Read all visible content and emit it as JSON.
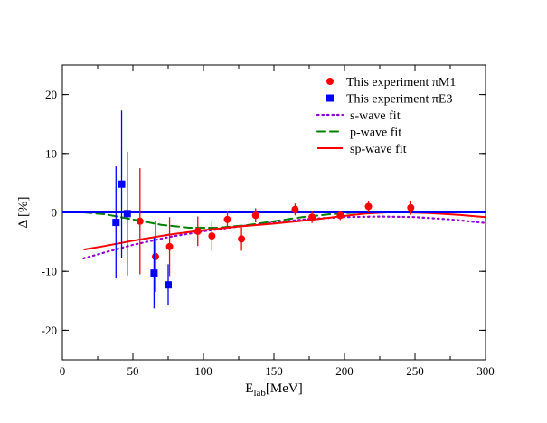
{
  "chart_data": {
    "type": "scatter",
    "title": "",
    "xlabel": {
      "main": "E",
      "sub": "lab",
      "unit": "[MeV]"
    },
    "ylabel": "Δ [%]",
    "xlim": [
      0,
      300
    ],
    "ylim": [
      -25,
      25
    ],
    "xticks": [
      0,
      50,
      100,
      150,
      200,
      250,
      300
    ],
    "yticks": [
      -20,
      -10,
      0,
      10,
      20
    ],
    "legend_position": "top-right",
    "colors": {
      "red": "#ff0000",
      "blue": "#0000ff",
      "purple": "#9400d3",
      "green": "#008000"
    },
    "legend": [
      {
        "key": "pim1",
        "label": "This experiment πM1",
        "marker": "circle",
        "color": "#ff0000"
      },
      {
        "key": "pie3",
        "label": "This experiment πE3",
        "marker": "square",
        "color": "#0000ff"
      },
      {
        "key": "s",
        "label": "s-wave fit",
        "line": "dotted",
        "color": "#9400d3"
      },
      {
        "key": "p",
        "label": "p-wave fit",
        "line": "dashed",
        "color": "#008000"
      },
      {
        "key": "sp",
        "label": "sp-wave fit",
        "line": "solid",
        "color": "#ff0000"
      }
    ],
    "series": [
      {
        "name": "This experiment πM1",
        "kind": "points",
        "marker": "circle",
        "color": "#ff0000",
        "points": [
          {
            "x": 55,
            "y": -1.5,
            "err": 9.0
          },
          {
            "x": 66,
            "y": -7.5,
            "err": 6.0
          },
          {
            "x": 76,
            "y": -5.8,
            "err": 5.0
          },
          {
            "x": 96,
            "y": -3.2,
            "err": 2.5
          },
          {
            "x": 106,
            "y": -4.0,
            "err": 2.5
          },
          {
            "x": 117,
            "y": -1.2,
            "err": 1.5
          },
          {
            "x": 127,
            "y": -4.5,
            "err": 2.0
          },
          {
            "x": 137,
            "y": -0.5,
            "err": 1.2
          },
          {
            "x": 165,
            "y": 0.5,
            "err": 1.0
          },
          {
            "x": 177,
            "y": -0.8,
            "err": 1.0
          },
          {
            "x": 197,
            "y": -0.5,
            "err": 0.8
          },
          {
            "x": 217,
            "y": 1.0,
            "err": 1.0
          },
          {
            "x": 247,
            "y": 0.8,
            "err": 1.2
          }
        ]
      },
      {
        "name": "This experiment πE3",
        "kind": "points",
        "marker": "square",
        "color": "#0000ff",
        "points": [
          {
            "x": 38,
            "y": -1.7,
            "err": 9.5
          },
          {
            "x": 42,
            "y": 4.8,
            "err": 12.5
          },
          {
            "x": 46,
            "y": -0.2,
            "err": 10.5
          },
          {
            "x": 65,
            "y": -10.3,
            "err": 6.0
          },
          {
            "x": 75,
            "y": -12.3,
            "err": 3.5
          }
        ]
      },
      {
        "name": "s-wave fit",
        "kind": "line",
        "line": "dotted",
        "color": "#9400d3",
        "points": [
          [
            15,
            -7.8
          ],
          [
            30,
            -6.8
          ],
          [
            50,
            -5.5
          ],
          [
            75,
            -4.2
          ],
          [
            100,
            -3.2
          ],
          [
            125,
            -2.4
          ],
          [
            150,
            -1.7
          ],
          [
            175,
            -1.1
          ],
          [
            200,
            -0.8
          ],
          [
            225,
            -0.7
          ],
          [
            250,
            -0.8
          ],
          [
            275,
            -1.2
          ],
          [
            300,
            -1.8
          ]
        ]
      },
      {
        "name": "p-wave fit",
        "kind": "line",
        "line": "dashed",
        "color": "#008000",
        "points": [
          [
            15,
            0
          ],
          [
            30,
            -0.3
          ],
          [
            50,
            -1.2
          ],
          [
            70,
            -2.1
          ],
          [
            90,
            -2.6
          ],
          [
            110,
            -2.6
          ],
          [
            130,
            -2.2
          ],
          [
            150,
            -1.5
          ],
          [
            170,
            -0.8
          ],
          [
            190,
            -0.3
          ],
          [
            210,
            0
          ],
          [
            230,
            0
          ],
          [
            260,
            0
          ],
          [
            300,
            0
          ]
        ]
      },
      {
        "name": "sp-wave fit",
        "kind": "line",
        "line": "solid",
        "color": "#ff0000",
        "points": [
          [
            15,
            -6.3
          ],
          [
            30,
            -5.7
          ],
          [
            50,
            -4.8
          ],
          [
            75,
            -3.8
          ],
          [
            100,
            -3.0
          ],
          [
            125,
            -2.4
          ],
          [
            150,
            -1.9
          ],
          [
            175,
            -1.3
          ],
          [
            200,
            -0.6
          ],
          [
            215,
            -0.2
          ],
          [
            230,
            0
          ],
          [
            245,
            0
          ],
          [
            260,
            -0.1
          ],
          [
            280,
            -0.4
          ],
          [
            300,
            -0.8
          ]
        ]
      },
      {
        "name": "zero line",
        "kind": "line",
        "line": "solid",
        "color": "#0000ff",
        "points": [
          [
            0,
            0
          ],
          [
            300,
            0
          ]
        ]
      }
    ]
  }
}
